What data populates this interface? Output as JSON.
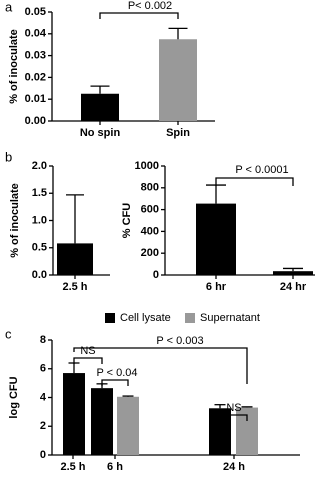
{
  "chart_data": [
    {
      "type": "bar",
      "panel_label": "a",
      "ylabel": "% of inoculate",
      "categories": [
        "No spin",
        "Spin"
      ],
      "values": [
        0.0125,
        0.0375
      ],
      "errors": [
        0.0035,
        0.005
      ],
      "colors": [
        "#000000",
        "#999999"
      ],
      "ylim": [
        0,
        0.05
      ],
      "yticks": [
        {
          "value": 0,
          "label": "0.00"
        },
        {
          "value": 0.01,
          "label": "0.01"
        },
        {
          "value": 0.02,
          "label": "0.02"
        },
        {
          "value": 0.03,
          "label": "0.03"
        },
        {
          "value": 0.04,
          "label": "0.04"
        },
        {
          "value": 0.05,
          "label": "0.05"
        }
      ],
      "annotations": [
        "P< 0.002"
      ],
      "grid": false
    },
    {
      "type": "bar",
      "panel_label": "b",
      "ylabel": "% of inoculate",
      "categories": [
        "2.5 h"
      ],
      "values": [
        0.58
      ],
      "errors": [
        0.89
      ],
      "colors": [
        "#000000"
      ],
      "ylim": [
        0,
        2
      ],
      "yticks": [
        {
          "value": 0,
          "label": "0.0"
        },
        {
          "value": 0.5,
          "label": "0.5"
        },
        {
          "value": 1,
          "label": "1.0"
        },
        {
          "value": 1.5,
          "label": "1.5"
        },
        {
          "value": 2,
          "label": "2.0"
        }
      ],
      "grid": false
    },
    {
      "type": "bar",
      "ylabel": "% CFU",
      "categories": [
        "6 hr",
        "24 hr"
      ],
      "values": [
        655,
        35
      ],
      "errors": [
        170,
        25
      ],
      "colors": [
        "#000000",
        "#000000"
      ],
      "ylim": [
        0,
        1000
      ],
      "yticks": [
        0,
        200,
        400,
        600,
        800,
        1000
      ],
      "annotations": [
        "P < 0.0001"
      ],
      "grid": false
    },
    {
      "type": "grouped_bar",
      "panel_label": "c",
      "ylabel": "log CFU",
      "categories": [
        "2.5 h",
        "6 h",
        "24 h"
      ],
      "series": [
        {
          "name": "Cell lysate",
          "color": "#000000",
          "values": [
            5.7,
            4.65,
            3.25
          ],
          "errors": [
            0.7,
            0.3,
            0.25
          ]
        },
        {
          "name": "Supernatant",
          "color": "#999999",
          "values": [
            null,
            4.05,
            3.3
          ],
          "errors": [
            null,
            0.05,
            0.05
          ]
        }
      ],
      "ylim": [
        0,
        8
      ],
      "yticks": [
        0,
        2,
        4,
        6,
        8
      ],
      "annotations": [
        "NS",
        "P < 0.003",
        "P < 0.04",
        "NS"
      ],
      "grid": false
    }
  ]
}
